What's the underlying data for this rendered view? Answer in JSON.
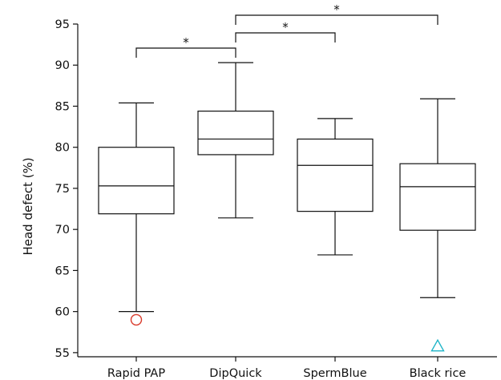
{
  "chart_data": {
    "type": "boxplot",
    "title": "",
    "xlabel": "",
    "ylabel": "Head defect (%)",
    "ylim": [
      54.5,
      95
    ],
    "yticks": [
      55,
      60,
      65,
      70,
      75,
      80,
      85,
      90,
      95
    ],
    "grid": false,
    "categories": [
      "Rapid PAP",
      "DipQuick",
      "SpermBlue",
      "Black rice"
    ],
    "boxes": [
      {
        "category": "Rapid PAP",
        "whisker_low": 60,
        "q1": 71.9,
        "median": 75.3,
        "q3": 80,
        "whisker_high": 85.4
      },
      {
        "category": "DipQuick",
        "whisker_low": 71.4,
        "q1": 79.1,
        "median": 81,
        "q3": 84.4,
        "whisker_high": 90.3
      },
      {
        "category": "SpermBlue",
        "whisker_low": 66.9,
        "q1": 72.2,
        "median": 77.8,
        "q3": 81,
        "whisker_high": 83.5
      },
      {
        "category": "Black rice",
        "whisker_low": 61.7,
        "q1": 69.9,
        "median": 75.2,
        "q3": 78,
        "whisker_high": 85.9
      }
    ],
    "outliers": [
      {
        "category": "Rapid PAP",
        "value": 59,
        "marker": "circle",
        "color": "#d93a2b"
      },
      {
        "category": "Black rice",
        "value": 55.8,
        "marker": "triangle",
        "color": "#1fb5c8"
      }
    ],
    "significance": [
      {
        "from": "Rapid PAP",
        "to": "DipQuick",
        "label": "*"
      },
      {
        "from": "DipQuick",
        "to": "SpermBlue",
        "label": "*"
      },
      {
        "from": "DipQuick",
        "to": "Black rice",
        "label": "*"
      }
    ]
  }
}
